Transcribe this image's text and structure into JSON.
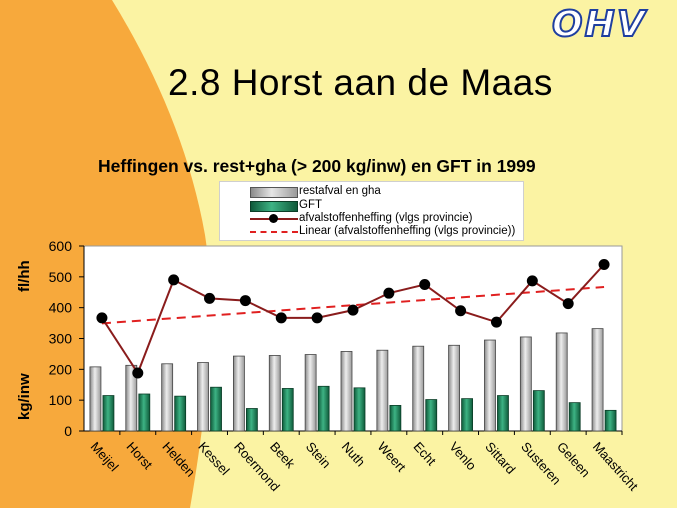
{
  "logo_text": "OHV",
  "slide_title": "2.8 Horst aan de Maas",
  "colors": {
    "background": "#fbf3a3",
    "orange_panel": "#f7a93c",
    "chart_bg": "#ffffff",
    "grey_bar": "#c8c8c8",
    "green_bar": "#2e8b5f",
    "line": "#8a1c1c",
    "trend": "#e02020",
    "logo": "#1f3fa0"
  },
  "chart_data": {
    "type": "bar",
    "title": "Heffingen vs. rest+gha (> 200 kg/inw) en GFT in 1999",
    "ylabel_top": "fl/hh",
    "ylabel_bottom": "kg/inw",
    "ylim": [
      0,
      600
    ],
    "yticks": [
      "0",
      "100",
      "200",
      "300",
      "400",
      "500",
      "600"
    ],
    "legend_position": "top",
    "categories": [
      "Meijel",
      "Horst",
      "Helden",
      "Kessel",
      "Roermond",
      "Beek",
      "Stein",
      "Nuth",
      "Weert",
      "Echt",
      "Venlo",
      "Sittard",
      "Susteren",
      "Geleen",
      "Maastricht"
    ],
    "series": [
      {
        "name": "restafval en gha",
        "kind": "bar",
        "values": [
          208,
          213,
          218,
          222,
          243,
          245,
          248,
          258,
          262,
          275,
          278,
          295,
          305,
          318,
          332
        ]
      },
      {
        "name": "GFT",
        "kind": "bar",
        "values": [
          115,
          120,
          113,
          142,
          73,
          138,
          145,
          140,
          83,
          102,
          105,
          115,
          131,
          92,
          67
        ]
      },
      {
        "name": "afvalstoffenheffing (vlgs provincie)",
        "kind": "line",
        "values": [
          367,
          188,
          490,
          430,
          423,
          367,
          367,
          392,
          447,
          475,
          390,
          353,
          487,
          413,
          540
        ]
      },
      {
        "name": "Linear (afvalstoffenheffing (vlgs provincie))",
        "kind": "trend",
        "values": [
          349,
          358,
          366,
          375,
          383,
          391,
          400,
          408,
          416,
          425,
          433,
          441,
          450,
          458,
          467
        ]
      }
    ]
  }
}
